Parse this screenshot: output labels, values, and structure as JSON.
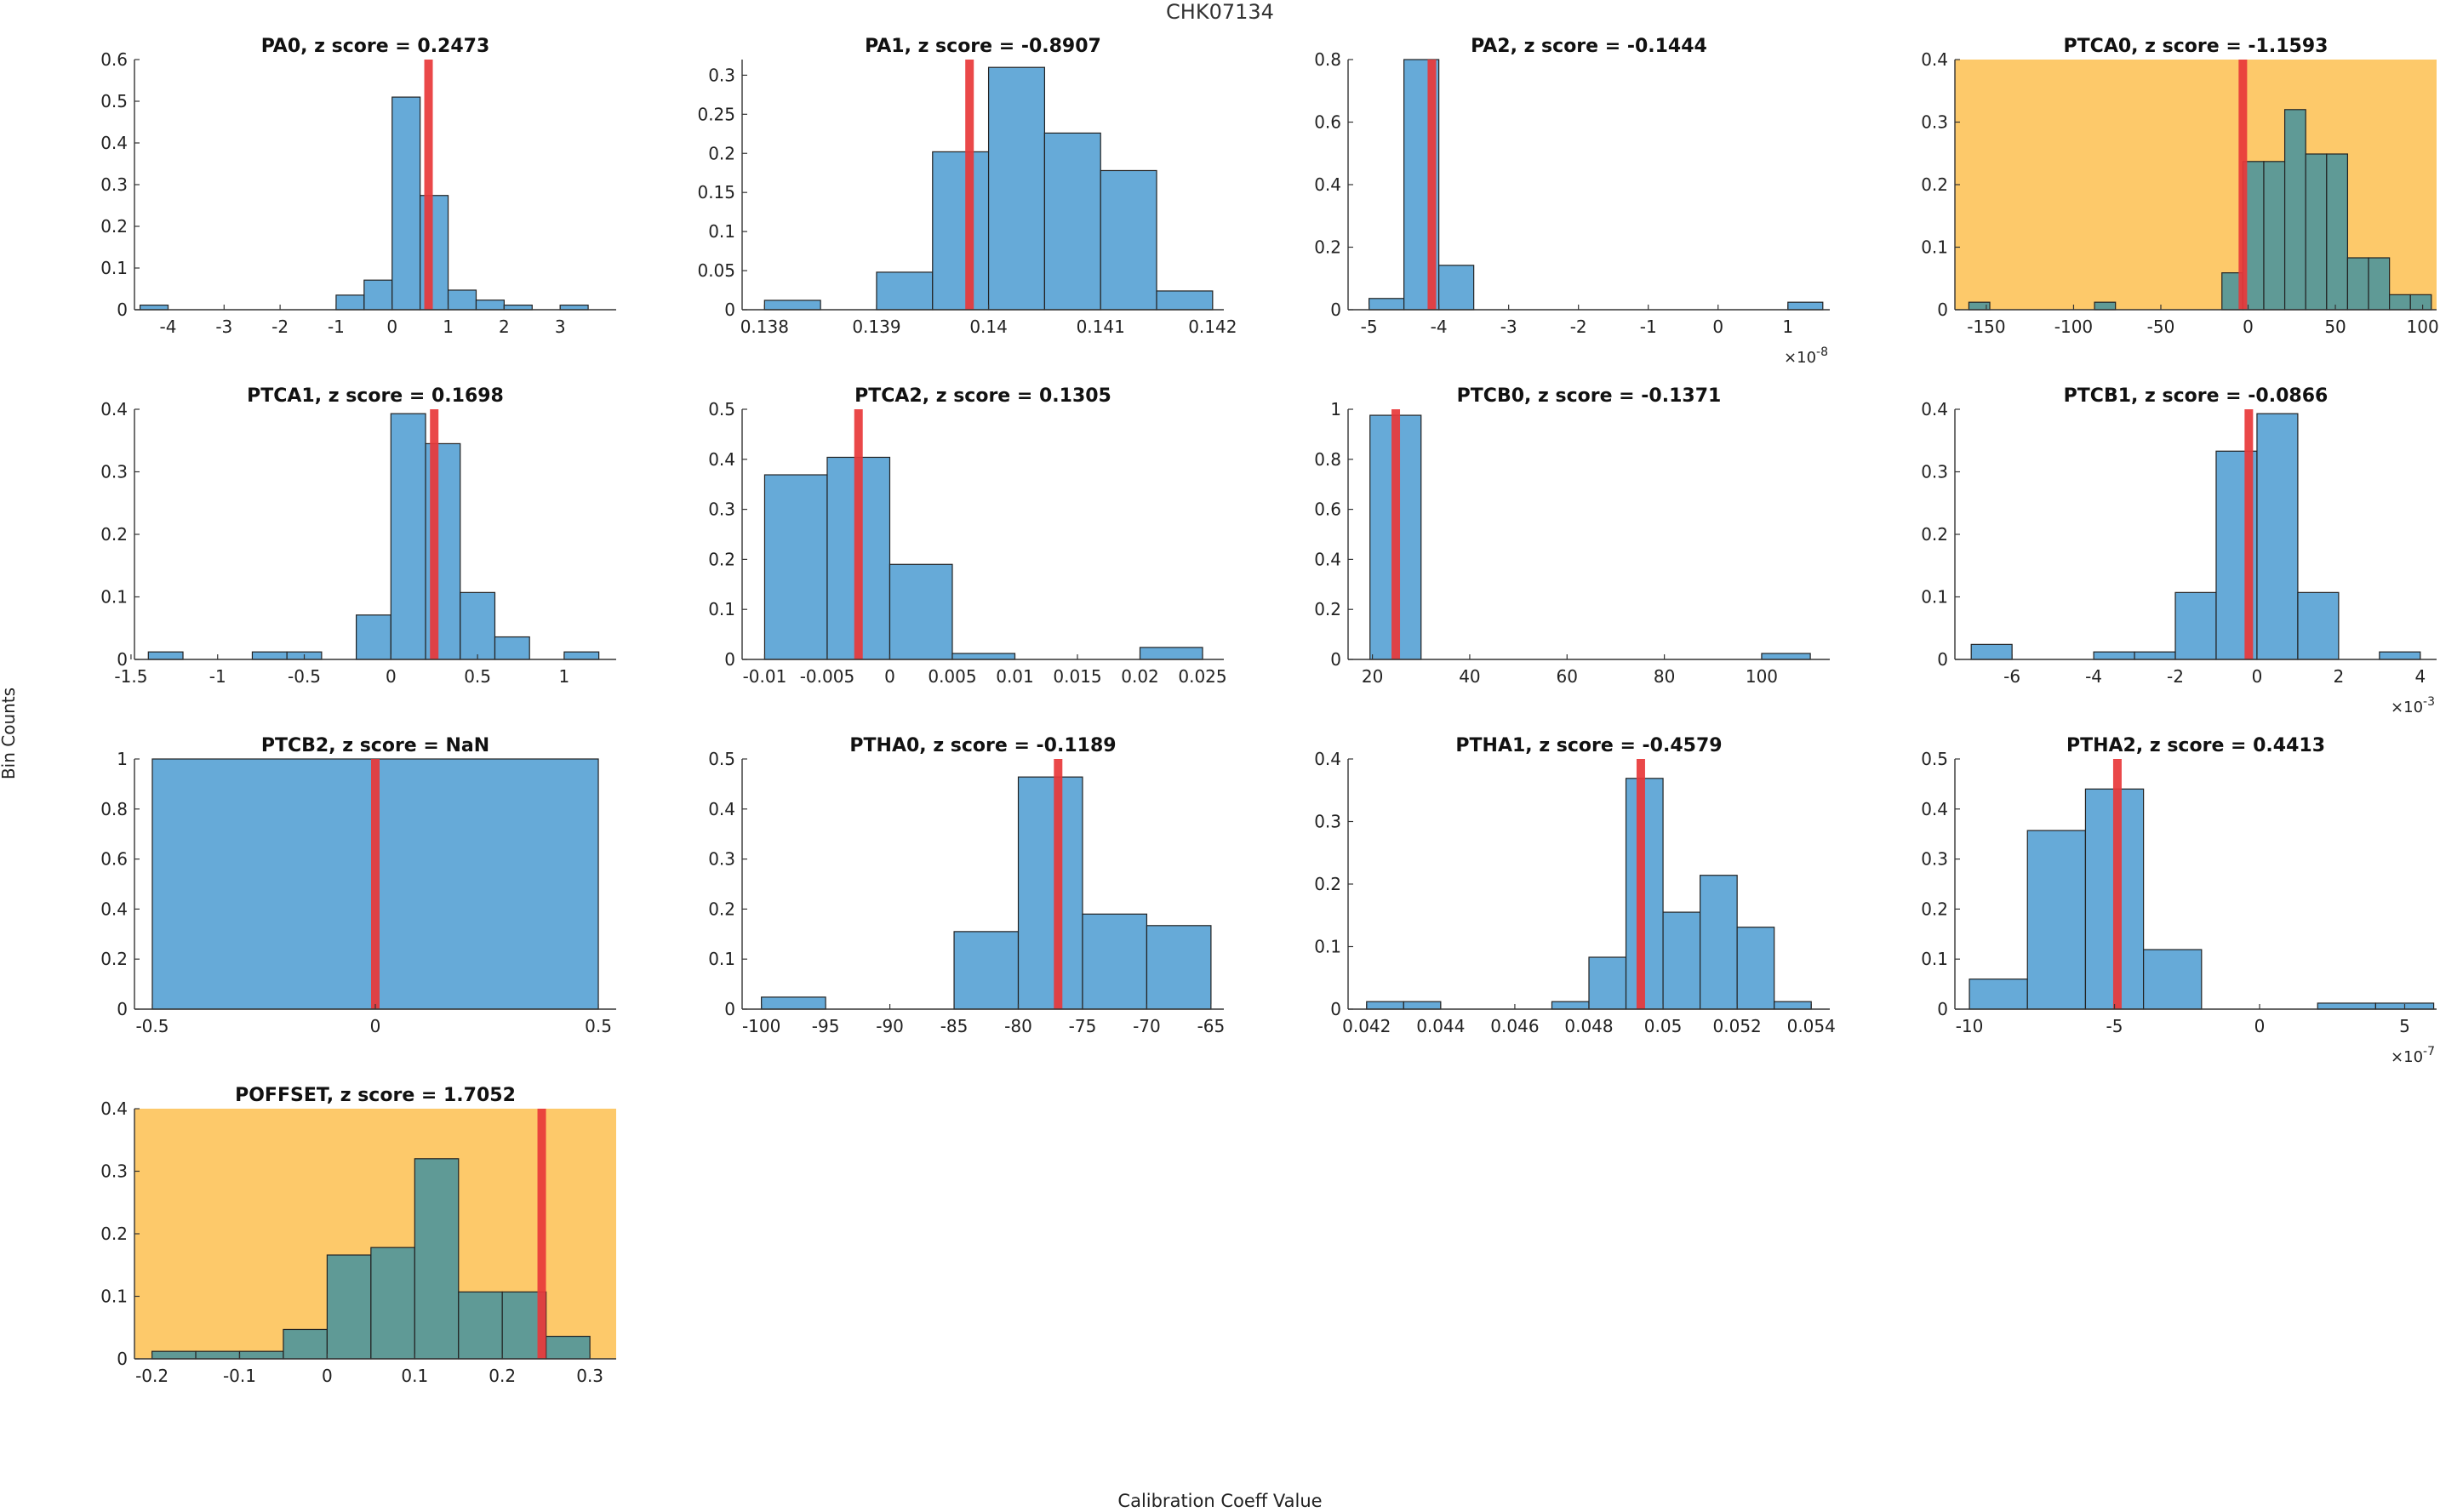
{
  "figure": {
    "title": "CHK07134",
    "ylabel": "Bin Counts",
    "xlabel": "Calibration Coeff Value",
    "colors": {
      "bar": "#66aad8",
      "bar_edge": "#222222",
      "zline": "#e8383a",
      "highlight_bg": "#fdc96a",
      "highlight_bar": "#5f9a96"
    }
  },
  "chart_data": [
    {
      "type": "bar",
      "title": "PA0, z score = 0.2473",
      "highlight": false,
      "xlim": [
        -4.6,
        4.0
      ],
      "ylim": [
        0,
        0.6
      ],
      "xticks": [
        -4,
        -3,
        -2,
        -1,
        0,
        1,
        2,
        3
      ],
      "yticks": [
        0,
        0.1,
        0.2,
        0.3,
        0.4,
        0.5,
        0.6
      ],
      "xexp": "",
      "bins": [
        [
          -4.5,
          -4.0,
          0.011
        ],
        [
          -1.0,
          -0.5,
          0.035
        ],
        [
          -0.5,
          0.0,
          0.071
        ],
        [
          0.0,
          0.5,
          0.51
        ],
        [
          0.5,
          1.0,
          0.274
        ],
        [
          1.0,
          1.5,
          0.047
        ],
        [
          1.5,
          2.0,
          0.023
        ],
        [
          2.0,
          2.5,
          0.011
        ],
        [
          3.0,
          3.5,
          0.011
        ]
      ],
      "zline": 0.65
    },
    {
      "type": "bar",
      "title": "PA1, z score = -0.8907",
      "highlight": false,
      "xlim": [
        0.1378,
        0.1421
      ],
      "ylim": [
        0,
        0.32
      ],
      "xticks": [
        0.138,
        0.139,
        0.14,
        0.141,
        0.142
      ],
      "yticks": [
        0,
        0.05,
        0.1,
        0.15,
        0.2,
        0.25,
        0.3
      ],
      "xexp": "",
      "bins": [
        [
          0.138,
          0.1385,
          0.012
        ],
        [
          0.139,
          0.1395,
          0.048
        ],
        [
          0.1395,
          0.14,
          0.202
        ],
        [
          0.14,
          0.1405,
          0.31
        ],
        [
          0.1405,
          0.141,
          0.226
        ],
        [
          0.141,
          0.1415,
          0.178
        ],
        [
          0.1415,
          0.142,
          0.024
        ]
      ],
      "zline": 0.13983
    },
    {
      "type": "bar",
      "title": "PA2, z score = -0.1444",
      "highlight": false,
      "xlim": [
        -5.3,
        1.6
      ],
      "ylim": [
        0,
        0.8
      ],
      "xticks": [
        -5,
        -4,
        -3,
        -2,
        -1,
        0,
        1
      ],
      "yticks": [
        0,
        0.2,
        0.4,
        0.6,
        0.8
      ],
      "xexp": "×10",
      "bins": [
        [
          -5.0,
          -4.5,
          0.036
        ],
        [
          -4.5,
          -4.0,
          0.8
        ],
        [
          -4.0,
          -3.5,
          0.142
        ],
        [
          1.0,
          1.5,
          0.024
        ]
      ],
      "zline": -4.1
    },
    {
      "type": "bar",
      "title": "PTCA0, z score = -1.1593",
      "highlight": true,
      "xlim": [
        -168,
        108
      ],
      "ylim": [
        0,
        0.4
      ],
      "xticks": [
        -150,
        -100,
        -50,
        0,
        50,
        100
      ],
      "yticks": [
        0,
        0.1,
        0.2,
        0.3,
        0.4
      ],
      "xexp": "",
      "bins": [
        [
          -160,
          -148,
          0.012
        ],
        [
          -88,
          -76,
          0.012
        ],
        [
          -15,
          -3,
          0.059
        ],
        [
          -3,
          9,
          0.237
        ],
        [
          9,
          21,
          0.237
        ],
        [
          21,
          33,
          0.32
        ],
        [
          33,
          45,
          0.249
        ],
        [
          45,
          57,
          0.249
        ],
        [
          57,
          69,
          0.083
        ],
        [
          69,
          81,
          0.083
        ],
        [
          81,
          93,
          0.024
        ],
        [
          93,
          105,
          0.024
        ]
      ],
      "zline": -3
    },
    {
      "type": "bar",
      "title": "PTCA1, z score = 0.1698",
      "highlight": false,
      "xlim": [
        -1.48,
        1.3
      ],
      "ylim": [
        0,
        0.4
      ],
      "xticks": [
        -1.5,
        -1,
        -0.5,
        0,
        0.5,
        1
      ],
      "yticks": [
        0,
        0.1,
        0.2,
        0.3,
        0.4
      ],
      "xexp": "",
      "bins": [
        [
          -1.4,
          -1.2,
          0.012
        ],
        [
          -0.8,
          -0.6,
          0.012
        ],
        [
          -0.6,
          -0.4,
          0.012
        ],
        [
          -0.2,
          0.0,
          0.071
        ],
        [
          0.0,
          0.2,
          0.393
        ],
        [
          0.2,
          0.4,
          0.345
        ],
        [
          0.4,
          0.6,
          0.107
        ],
        [
          0.6,
          0.8,
          0.036
        ],
        [
          1.0,
          1.2,
          0.012
        ]
      ],
      "zline": 0.25
    },
    {
      "type": "bar",
      "title": "PTCA2, z score = 0.1305",
      "highlight": false,
      "xlim": [
        -0.0118,
        0.0267
      ],
      "ylim": [
        0,
        0.5
      ],
      "xticks": [
        -0.01,
        -0.005,
        0,
        0.005,
        0.01,
        0.015,
        0.02,
        0.025
      ],
      "yticks": [
        0,
        0.1,
        0.2,
        0.3,
        0.4,
        0.5
      ],
      "xexp": "",
      "bins": [
        [
          -0.01,
          -0.005,
          0.369
        ],
        [
          -0.005,
          0.0,
          0.404
        ],
        [
          0.0,
          0.005,
          0.19
        ],
        [
          0.005,
          0.01,
          0.012
        ],
        [
          0.02,
          0.025,
          0.024
        ]
      ],
      "zline": -0.0025
    },
    {
      "type": "bar",
      "title": "PTCB0, z score = -0.1371",
      "highlight": false,
      "xlim": [
        15,
        114
      ],
      "ylim": [
        0,
        1
      ],
      "xticks": [
        20,
        40,
        60,
        80,
        100
      ],
      "yticks": [
        0,
        0.2,
        0.4,
        0.6,
        0.8,
        1
      ],
      "xexp": "",
      "bins": [
        [
          19.5,
          30,
          0.976
        ],
        [
          100,
          110,
          0.024
        ]
      ],
      "zline": 24.8
    },
    {
      "type": "bar",
      "title": "PTCB1, z score = -0.0866",
      "highlight": false,
      "xlim": [
        -7.4,
        4.4
      ],
      "ylim": [
        0,
        0.4
      ],
      "xticks": [
        -6,
        -4,
        -2,
        0,
        2,
        4
      ],
      "yticks": [
        0,
        0.1,
        0.2,
        0.3,
        0.4
      ],
      "xexp": "×10",
      "bins": [
        [
          -7.0,
          -6.0,
          0.024
        ],
        [
          -4.0,
          -3.0,
          0.012
        ],
        [
          -3.0,
          -2.0,
          0.012
        ],
        [
          -2.0,
          -1.0,
          0.107
        ],
        [
          -1.0,
          0.0,
          0.333
        ],
        [
          0.0,
          1.0,
          0.393
        ],
        [
          1.0,
          2.0,
          0.107
        ],
        [
          3.0,
          4.0,
          0.012
        ]
      ],
      "zline": -0.2
    },
    {
      "type": "bar",
      "title": "PTCB2, z score = NaN",
      "highlight": false,
      "xlim": [
        -0.54,
        0.54
      ],
      "ylim": [
        0,
        1
      ],
      "xticks": [
        -0.5,
        0,
        0.5
      ],
      "yticks": [
        0,
        0.2,
        0.4,
        0.6,
        0.8,
        1
      ],
      "xexp": "",
      "bins": [
        [
          -0.5,
          0.5,
          1.0
        ]
      ],
      "zline": 0
    },
    {
      "type": "bar",
      "title": "PTHA0, z score = -0.1189",
      "highlight": false,
      "xlim": [
        -101.5,
        -64
      ],
      "ylim": [
        0,
        0.5
      ],
      "xticks": [
        -100,
        -95,
        -90,
        -85,
        -80,
        -75,
        -70,
        -65
      ],
      "yticks": [
        0,
        0.1,
        0.2,
        0.3,
        0.4,
        0.5
      ],
      "xexp": "",
      "bins": [
        [
          -100,
          -95,
          0.024
        ],
        [
          -85,
          -80,
          0.155
        ],
        [
          -80,
          -75,
          0.464
        ],
        [
          -75,
          -70,
          0.19
        ],
        [
          -70,
          -65,
          0.167
        ]
      ],
      "zline": -76.9
    },
    {
      "type": "bar",
      "title": "PTHA1, z score = -0.4579",
      "highlight": false,
      "xlim": [
        0.0415,
        0.0545
      ],
      "ylim": [
        0,
        0.4
      ],
      "xticks": [
        0.042,
        0.044,
        0.046,
        0.048,
        0.05,
        0.052,
        0.054
      ],
      "yticks": [
        0,
        0.1,
        0.2,
        0.3,
        0.4
      ],
      "xexp": "",
      "bins": [
        [
          0.042,
          0.043,
          0.012
        ],
        [
          0.043,
          0.044,
          0.012
        ],
        [
          0.047,
          0.048,
          0.012
        ],
        [
          0.048,
          0.049,
          0.083
        ],
        [
          0.049,
          0.05,
          0.369
        ],
        [
          0.05,
          0.051,
          0.155
        ],
        [
          0.051,
          0.052,
          0.214
        ],
        [
          0.052,
          0.053,
          0.131
        ],
        [
          0.053,
          0.054,
          0.012
        ]
      ],
      "zline": 0.0494
    },
    {
      "type": "bar",
      "title": "PTHA2, z score = 0.4413",
      "highlight": false,
      "xlim": [
        -10.5,
        6.1
      ],
      "ylim": [
        0,
        0.5
      ],
      "xticks": [
        -10,
        -5,
        0,
        5
      ],
      "yticks": [
        0,
        0.1,
        0.2,
        0.3,
        0.4,
        0.5
      ],
      "xexp": "×10",
      "bins": [
        [
          -10.0,
          -8.0,
          0.06
        ],
        [
          -8.0,
          -6.0,
          0.357
        ],
        [
          -6.0,
          -4.0,
          0.44
        ],
        [
          -4.0,
          -2.0,
          0.119
        ],
        [
          2.0,
          4.0,
          0.012
        ],
        [
          4.0,
          6.0,
          0.012
        ]
      ],
      "zline": -4.9
    },
    {
      "type": "bar",
      "title": "POFFSET, z score = 1.7052",
      "highlight": true,
      "xlim": [
        -0.22,
        0.33
      ],
      "ylim": [
        0,
        0.4
      ],
      "xticks": [
        -0.2,
        -0.1,
        0,
        0.1,
        0.2,
        0.3
      ],
      "yticks": [
        0,
        0.1,
        0.2,
        0.3,
        0.4
      ],
      "xexp": "",
      "bins": [
        [
          -0.2,
          -0.15,
          0.012
        ],
        [
          -0.15,
          -0.1,
          0.012
        ],
        [
          -0.1,
          -0.05,
          0.012
        ],
        [
          -0.05,
          0.0,
          0.047
        ],
        [
          0.0,
          0.05,
          0.166
        ],
        [
          0.05,
          0.1,
          0.178
        ],
        [
          0.1,
          0.15,
          0.32
        ],
        [
          0.15,
          0.2,
          0.107
        ],
        [
          0.2,
          0.25,
          0.107
        ],
        [
          0.25,
          0.3,
          0.036
        ]
      ],
      "zline": 0.245
    }
  ],
  "exponents": {
    "PA2": "-8",
    "PTCB1": "-3",
    "PTHA2": "-7"
  }
}
